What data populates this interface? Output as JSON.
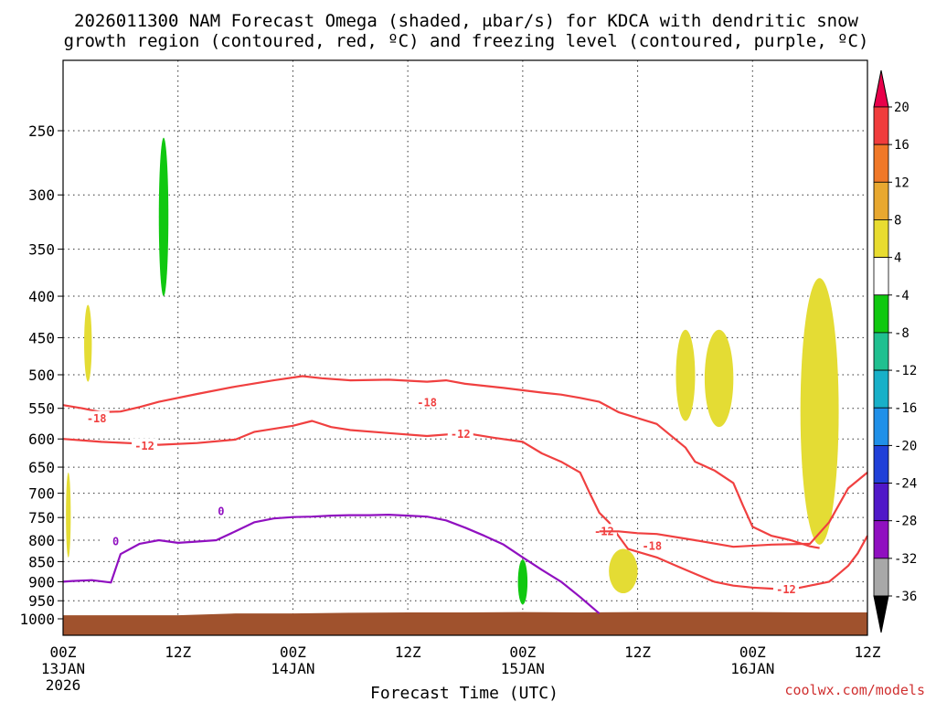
{
  "chart_data": {
    "type": "time-height cross-section",
    "title": [
      "2026011300 NAM Forecast Omega (shaded, μbar/s) for KDCA with dendritic snow",
      "growth region (contoured, red, ºC) and freezing level (contoured, purple, ºC)"
    ],
    "xlabel": "Forecast Time (UTC)",
    "credit": "coolwx.com/models",
    "x_range_hours": [
      0,
      84
    ],
    "y_scale": "log-pressure",
    "y_range_hPa": [
      1000,
      200
    ],
    "x_ticks": [
      {
        "hour": 0,
        "label": "00Z",
        "sub": "13JAN",
        "sub2": "2026"
      },
      {
        "hour": 12,
        "label": "12Z",
        "sub": "",
        "sub2": ""
      },
      {
        "hour": 24,
        "label": "00Z",
        "sub": "14JAN",
        "sub2": ""
      },
      {
        "hour": 36,
        "label": "12Z",
        "sub": "",
        "sub2": ""
      },
      {
        "hour": 48,
        "label": "00Z",
        "sub": "15JAN",
        "sub2": ""
      },
      {
        "hour": 60,
        "label": "12Z",
        "sub": "",
        "sub2": ""
      },
      {
        "hour": 72,
        "label": "00Z",
        "sub": "16JAN",
        "sub2": ""
      },
      {
        "hour": 84,
        "label": "12Z",
        "sub": "",
        "sub2": ""
      }
    ],
    "y_ticks": [
      250,
      300,
      350,
      400,
      450,
      500,
      550,
      600,
      650,
      700,
      750,
      800,
      850,
      900,
      950,
      1000
    ],
    "grid": true,
    "colorbar": {
      "labels": [
        "20",
        "16",
        "12",
        "8",
        "4",
        "-4",
        "-8",
        "-12",
        "-16",
        "-20",
        "-24",
        "-28",
        "-32",
        "-36"
      ],
      "colors": [
        "#e8004a",
        "#f03c3c",
        "#f07828",
        "#e8a830",
        "#e8dc30",
        "#ffffff",
        "#10c810",
        "#20c090",
        "#18b0c8",
        "#2090e8",
        "#2040d8",
        "#5018c8",
        "#9010c0",
        "#a8a8a8",
        "#000000"
      ]
    },
    "colors": {
      "snow_growth": "#f04040",
      "freezing_level": "#9010c0",
      "terrain": "#a0522d",
      "yellow": "#e4dc34",
      "green": "#10c810"
    },
    "contours": [
      {
        "name": "-18",
        "color_key": "snow_growth",
        "labels": [
          [
            3.5,
            566
          ],
          [
            38,
            541
          ],
          [
            61.5,
            814
          ]
        ],
        "points": [
          [
            0,
            545
          ],
          [
            2,
            550
          ],
          [
            4,
            556
          ],
          [
            6,
            555
          ],
          [
            8,
            548
          ],
          [
            10,
            540
          ],
          [
            14,
            528
          ],
          [
            18,
            517
          ],
          [
            22,
            508
          ],
          [
            25,
            502
          ],
          [
            27,
            505
          ],
          [
            30,
            508
          ],
          [
            34,
            507
          ],
          [
            38,
            510
          ],
          [
            40,
            508
          ],
          [
            42,
            513
          ],
          [
            46,
            519
          ],
          [
            50,
            526
          ],
          [
            52,
            529
          ],
          [
            54,
            534
          ],
          [
            56,
            540
          ],
          [
            58,
            556
          ],
          [
            62,
            575
          ],
          [
            65,
            615
          ],
          [
            66,
            640
          ],
          [
            68,
            656
          ],
          [
            70,
            680
          ],
          [
            71,
            725
          ],
          [
            72,
            770
          ],
          [
            74,
            790
          ],
          [
            76,
            800
          ],
          [
            78,
            814
          ],
          [
            79,
            818
          ]
        ]
      },
      {
        "name": "-12",
        "color_key": "snow_growth",
        "labels": [
          [
            8.5,
            612
          ],
          [
            41.5,
            592
          ],
          [
            56.5,
            780
          ],
          [
            75.5,
            920
          ]
        ],
        "points": [
          [
            0,
            600
          ],
          [
            4,
            605
          ],
          [
            8,
            608
          ],
          [
            10,
            610
          ],
          [
            14,
            607
          ],
          [
            18,
            601
          ],
          [
            20,
            588
          ],
          [
            24,
            578
          ],
          [
            26,
            570
          ],
          [
            28,
            580
          ],
          [
            30,
            585
          ],
          [
            34,
            590
          ],
          [
            38,
            595
          ],
          [
            42,
            590
          ],
          [
            45,
            598
          ],
          [
            48,
            605
          ],
          [
            50,
            625
          ],
          [
            52,
            640
          ],
          [
            54,
            660
          ],
          [
            55,
            700
          ],
          [
            56,
            740
          ],
          [
            57,
            760
          ],
          [
            58,
            790
          ],
          [
            59,
            820
          ],
          [
            62,
            840
          ],
          [
            64,
            860
          ],
          [
            66,
            880
          ],
          [
            68,
            900
          ],
          [
            70,
            910
          ],
          [
            72,
            915
          ],
          [
            74,
            918
          ],
          [
            76,
            920
          ],
          [
            78,
            910
          ],
          [
            80,
            900
          ],
          [
            81,
            880
          ],
          [
            82,
            860
          ],
          [
            83,
            830
          ],
          [
            84,
            790
          ]
        ]
      },
      {
        "name": "-12",
        "color_key": "snow_growth",
        "labels": [],
        "points": [
          [
            56,
            780
          ],
          [
            58,
            780
          ],
          [
            60,
            784
          ],
          [
            62,
            786
          ],
          [
            66,
            800
          ],
          [
            70,
            815
          ],
          [
            74,
            810
          ],
          [
            78,
            808
          ],
          [
            80,
            760
          ],
          [
            82,
            690
          ],
          [
            84,
            660
          ]
        ]
      },
      {
        "name": "0",
        "color_key": "freezing_level",
        "labels": [
          [
            5.5,
            803
          ],
          [
            16.5,
            737
          ]
        ],
        "points": [
          [
            0,
            900
          ],
          [
            1,
            898
          ],
          [
            3,
            896
          ],
          [
            5,
            902
          ],
          [
            6,
            832
          ],
          [
            8,
            808
          ],
          [
            10,
            800
          ],
          [
            12,
            806
          ],
          [
            14,
            803
          ],
          [
            16,
            800
          ],
          [
            18,
            780
          ],
          [
            20,
            760
          ],
          [
            22,
            752
          ],
          [
            24,
            749
          ],
          [
            26,
            748
          ],
          [
            28,
            746
          ],
          [
            30,
            745
          ],
          [
            32,
            745
          ],
          [
            34,
            744
          ],
          [
            36,
            746
          ],
          [
            38,
            748
          ],
          [
            40,
            756
          ],
          [
            42,
            772
          ],
          [
            44,
            790
          ],
          [
            46,
            810
          ],
          [
            48,
            840
          ],
          [
            50,
            870
          ],
          [
            52,
            900
          ],
          [
            54,
            940
          ],
          [
            56,
            985
          ]
        ]
      }
    ],
    "omega_regions": [
      {
        "name": "omega-green-upper",
        "color_key": "green",
        "bounds": {
          "h": [
            10,
            11
          ],
          "p": [
            255,
            400
          ]
        }
      },
      {
        "name": "omega-yellow-upper-left",
        "color_key": "yellow",
        "bounds": {
          "h": [
            2.2,
            3.0
          ],
          "p": [
            410,
            510
          ]
        }
      },
      {
        "name": "omega-yellow-left",
        "color_key": "yellow",
        "bounds": {
          "h": [
            0.3,
            0.8
          ],
          "p": [
            660,
            840
          ]
        }
      },
      {
        "name": "omega-green-lower",
        "color_key": "green",
        "bounds": {
          "h": [
            47.5,
            48.5
          ],
          "p": [
            845,
            960
          ]
        }
      },
      {
        "name": "omega-yellow-lower-mid",
        "color_key": "yellow",
        "bounds": {
          "h": [
            57,
            60
          ],
          "p": [
            820,
            930
          ]
        }
      },
      {
        "name": "omega-yellow-mid-1",
        "color_key": "yellow",
        "bounds": {
          "h": [
            64,
            66
          ],
          "p": [
            440,
            570
          ]
        }
      },
      {
        "name": "omega-yellow-mid-2",
        "color_key": "yellow",
        "bounds": {
          "h": [
            67,
            70
          ],
          "p": [
            440,
            580
          ]
        }
      },
      {
        "name": "omega-yellow-right",
        "color_key": "yellow",
        "bounds": {
          "h": [
            77,
            81
          ],
          "p": [
            380,
            810
          ]
        }
      }
    ],
    "terrain": [
      [
        0,
        990
      ],
      [
        12,
        990
      ],
      [
        18,
        985
      ],
      [
        24,
        985
      ],
      [
        30,
        983
      ],
      [
        36,
        982
      ],
      [
        42,
        982
      ],
      [
        48,
        981
      ],
      [
        54,
        982
      ],
      [
        60,
        981
      ],
      [
        66,
        981
      ],
      [
        72,
        981
      ],
      [
        78,
        982
      ],
      [
        84,
        982
      ]
    ]
  }
}
